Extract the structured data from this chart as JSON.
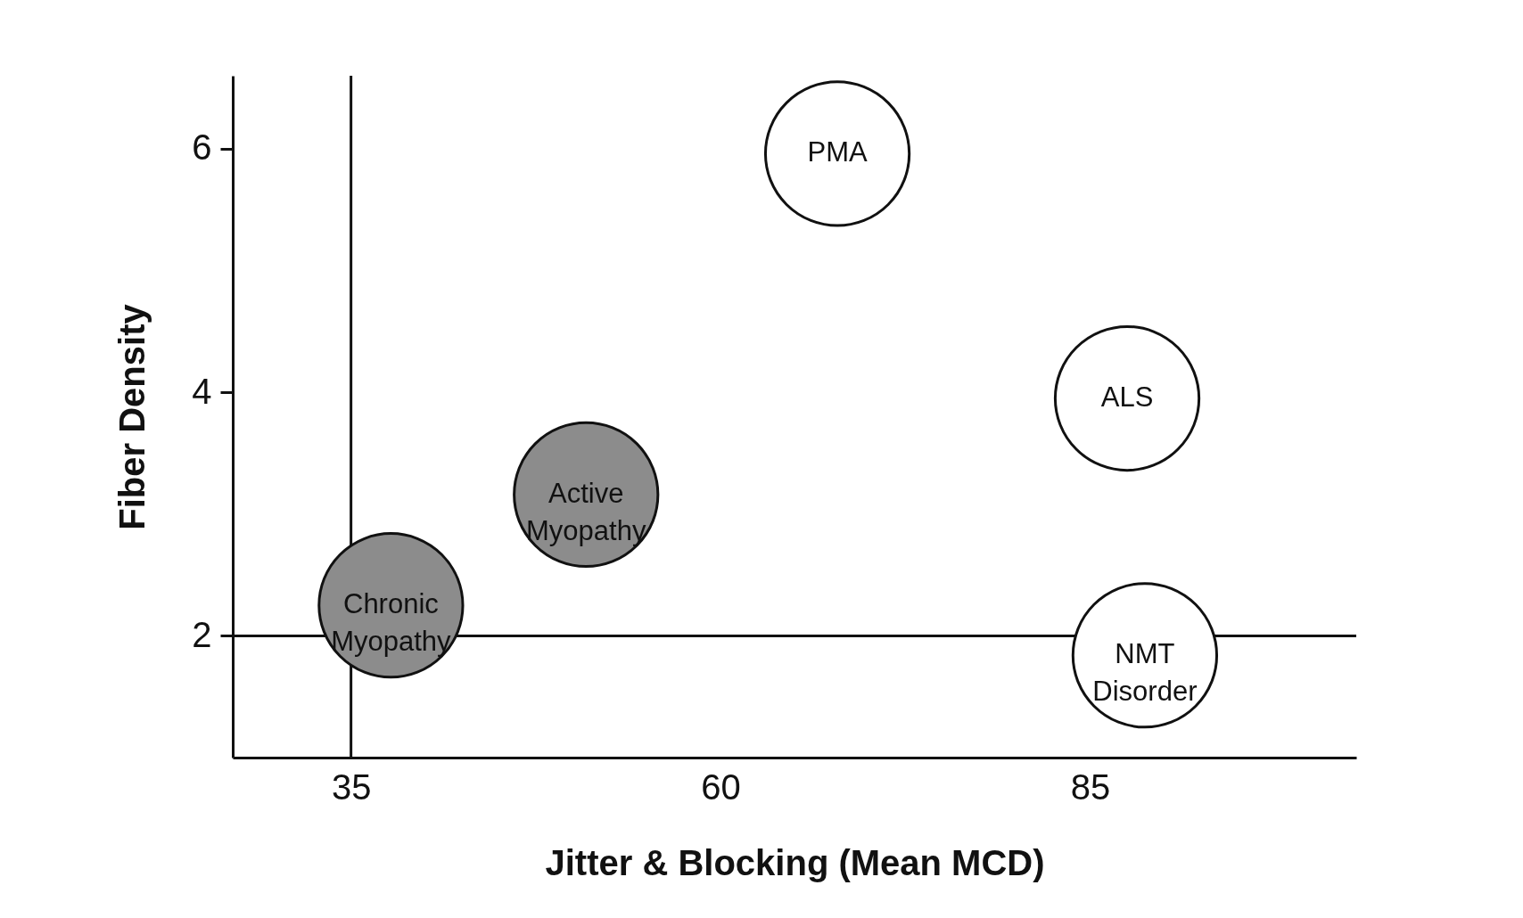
{
  "chart_data": {
    "type": "scatter",
    "xlabel": "Jitter & Blocking (Mean MCD)",
    "ylabel": "Fiber Density",
    "xlim": [
      27,
      103
    ],
    "ylim": [
      1,
      6.6
    ],
    "xticks": [
      35,
      60,
      85
    ],
    "yticks": [
      2,
      4,
      6
    ],
    "grid": false,
    "legend": false,
    "series": [
      {
        "name": "Chronic Myopathy",
        "color": "#8c8c8c",
        "x": [
          37.7
        ],
        "values": [
          2.25
        ]
      },
      {
        "name": "Active Myopathy",
        "color": "#8c8c8c",
        "x": [
          50.9
        ],
        "values": [
          3.16
        ]
      },
      {
        "name": "PMA",
        "color": "#ffffff",
        "x": [
          67.9
        ],
        "values": [
          5.96
        ]
      },
      {
        "name": "ALS",
        "color": "#ffffff",
        "x": [
          87.5
        ],
        "values": [
          3.95
        ]
      },
      {
        "name": "NMT Disorder",
        "color": "#ffffff",
        "x": [
          88.7
        ],
        "values": [
          1.84
        ]
      }
    ],
    "ref_lines": [
      {
        "axis": "x",
        "value": 35
      },
      {
        "axis": "y",
        "value": 2
      }
    ]
  }
}
